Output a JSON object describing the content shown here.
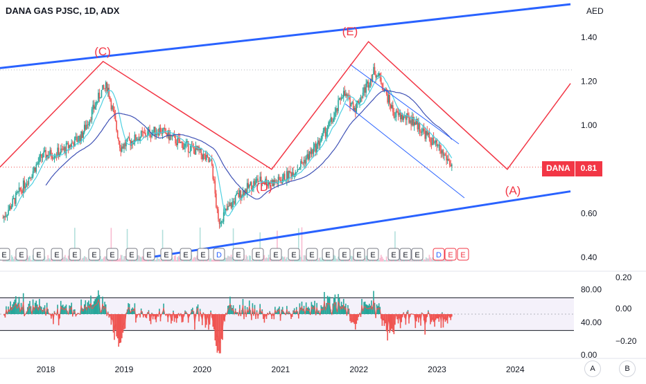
{
  "header": {
    "title": "DANA GAS PJSC, 1D, ADX"
  },
  "price_axis": {
    "currency": "AED",
    "ticks": [
      "1.40",
      "1.20",
      "1.00",
      "0.60",
      "0.40"
    ]
  },
  "price_tag": {
    "symbol": "DANA",
    "value": "0.81"
  },
  "wave_labels": [
    "(C)",
    "(D)",
    "(E)",
    "(A)"
  ],
  "earnings_marker": {
    "e": "E",
    "d": "D"
  },
  "oscillator": {
    "left_ticks": [
      "80.00",
      "40.00",
      "0.00"
    ],
    "right_ticks": [
      "0.20",
      "0.00",
      "−0.20"
    ]
  },
  "time_axis": {
    "ticks": [
      "2018",
      "2019",
      "2020",
      "2021",
      "2022",
      "2023",
      "2024"
    ]
  },
  "buttons": {
    "a": "A",
    "b": "B"
  },
  "colors": {
    "up": "#26a69a",
    "down": "#ef5350",
    "trend": "#2962ff",
    "wave": "#f23645",
    "ma_fast": "#4dd0e1",
    "ma_slow": "#3f51b5"
  },
  "chart_data": {
    "type": "candlestick",
    "title": "DANA GAS PJSC, 1D, ADX",
    "y_unit": "AED",
    "ylim": [
      0.37,
      1.56
    ],
    "x_range": [
      "2017-06-01",
      "2024-10-01"
    ],
    "last_price": 0.81,
    "close_series": {
      "x": [
        "2017-06",
        "2017-09",
        "2017-12",
        "2018-03",
        "2018-06",
        "2018-09",
        "2018-10",
        "2018-12",
        "2019-03",
        "2019-06",
        "2019-09",
        "2019-12",
        "2020-02",
        "2020-03",
        "2020-06",
        "2020-09",
        "2020-12",
        "2021-03",
        "2021-06",
        "2021-09",
        "2021-10",
        "2021-12",
        "2022-03",
        "2022-04",
        "2022-06",
        "2022-09",
        "2022-12",
        "2023-02",
        "2023-03"
      ],
      "y": [
        0.58,
        0.72,
        0.86,
        0.88,
        0.95,
        1.15,
        1.18,
        0.9,
        0.95,
        0.98,
        0.92,
        0.88,
        0.82,
        0.56,
        0.68,
        0.75,
        0.74,
        0.8,
        0.9,
        1.05,
        1.15,
        1.08,
        1.25,
        1.2,
        1.05,
        1.02,
        0.92,
        0.85,
        0.81
      ]
    },
    "trend_lines": [
      {
        "name": "upper channel",
        "from": [
          "2017-06-01",
          1.26
        ],
        "to": [
          "2024-09-15",
          1.55
        ]
      },
      {
        "name": "lower channel",
        "from": [
          "2019-05-01",
          0.4
        ],
        "to": [
          "2024-09-15",
          0.7
        ]
      }
    ],
    "wave_path": {
      "points": [
        [
          "2017-06-01",
          0.81
        ],
        [
          "2018-09-25",
          1.29
        ],
        [
          "2020-11-20",
          0.8
        ],
        [
          "2022-02-15",
          1.38
        ],
        [
          "2023-11-25",
          0.8
        ],
        [
          "2024-09-15",
          1.19
        ]
      ],
      "labels": [
        "",
        "(C)",
        "(D)",
        "(E)",
        "(A)",
        ""
      ]
    },
    "oscillator": {
      "ylim": [
        0,
        100
      ],
      "upper_band": 70,
      "lower_band": 30,
      "right_scale": [
        -0.2,
        0.2
      ]
    }
  }
}
